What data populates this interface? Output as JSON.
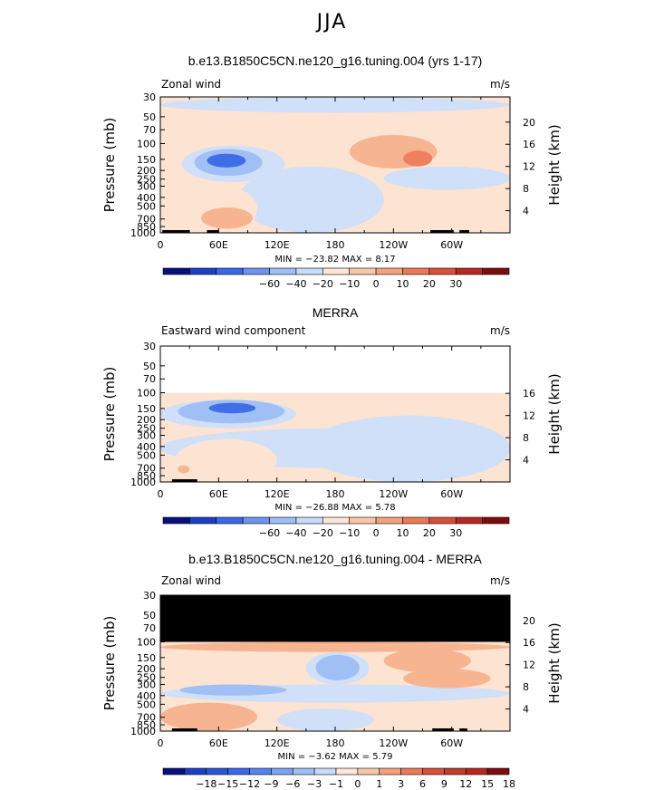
{
  "page_title": "JJA",
  "chart_data": [
    {
      "type": "heatmap",
      "title": "b.e13.B1850C5CN.ne120_g16.tuning.004 (yrs 1-17)",
      "left_label": "Zonal wind",
      "units": "m/s",
      "ylabel": "Pressure (mb)",
      "ylabel2": "Height (km)",
      "pressure_ticks": [
        "30",
        "50",
        "70",
        "100",
        "150",
        "200",
        "250",
        "300",
        "400",
        "500",
        "700",
        "850",
        "1000"
      ],
      "pressure_values": [
        30,
        50,
        70,
        100,
        150,
        200,
        250,
        300,
        400,
        500,
        700,
        850,
        1000
      ],
      "height_ticks": [
        "20",
        "16",
        "12",
        "8",
        "4"
      ],
      "height_values": [
        20,
        16,
        12,
        8,
        4
      ],
      "longitude_ticks": [
        "0",
        "60E",
        "120E",
        "180",
        "120W",
        "60W"
      ],
      "longitude_values": [
        0,
        60,
        120,
        180,
        240,
        300
      ],
      "xlim": [
        0,
        360
      ],
      "ylim": [
        1000,
        30
      ],
      "stats": "MIN = −23.82   MAX =    8.17",
      "min": -23.82,
      "max": 8.17,
      "colorbar_labels": [
        "−60",
        "−40",
        "−20",
        "−10",
        "0",
        "10",
        "20",
        "30"
      ],
      "colorbar_colors": [
        "#08107f",
        "#1a3fc6",
        "#3a68e8",
        "#6b95f0",
        "#9fbff5",
        "#c7dcf8",
        "#fbe6d8",
        "#f9c7a8",
        "#f4a27e",
        "#ec7a57",
        "#d9503a",
        "#b62820",
        "#7c0c10"
      ],
      "masked_top": false,
      "fill": [
        {
          "lon": [
            0,
            360
          ],
          "p": [
            30,
            1000
          ],
          "level": "light-orange"
        },
        {
          "lon": [
            0,
            360
          ],
          "p": [
            30,
            45
          ],
          "level": "light-blue"
        },
        {
          "lon": [
            0,
            360
          ],
          "p": [
            230,
            1000
          ],
          "level": "light-orange"
        },
        {
          "lon": [
            80,
            230
          ],
          "p": [
            180,
            1000
          ],
          "level": "light-blue"
        },
        {
          "lon": [
            230,
            360
          ],
          "p": [
            180,
            330
          ],
          "level": "light-blue"
        },
        {
          "lon": [
            22,
            128
          ],
          "p": [
            105,
            270
          ],
          "level": "light-blue"
        },
        {
          "lon": [
            35,
            105
          ],
          "p": [
            115,
            230
          ],
          "level": "mid-blue"
        },
        {
          "lon": [
            48,
            88
          ],
          "p": [
            130,
            185
          ],
          "level": "blue"
        },
        {
          "lon": [
            30,
            100
          ],
          "p": [
            300,
            1000
          ],
          "level": "light-orange"
        },
        {
          "lon": [
            42,
            95
          ],
          "p": [
            520,
            900
          ],
          "level": "orange"
        },
        {
          "lon": [
            195,
            285
          ],
          "p": [
            80,
            190
          ],
          "level": "orange"
        },
        {
          "lon": [
            250,
            280
          ],
          "p": [
            120,
            180
          ],
          "level": "red-orange"
        }
      ],
      "topography": [
        [
          2,
          30
        ],
        [
          48,
          60
        ],
        [
          278,
          302
        ],
        [
          308,
          318
        ]
      ]
    },
    {
      "type": "heatmap",
      "title": "MERRA",
      "left_label": "Eastward wind component",
      "units": "m/s",
      "ylabel": "Pressure (mb)",
      "ylabel2": "Height (km)",
      "pressure_ticks": [
        "30",
        "50",
        "70",
        "100",
        "150",
        "200",
        "250",
        "300",
        "400",
        "500",
        "700",
        "850",
        "1000"
      ],
      "pressure_values": [
        30,
        50,
        70,
        100,
        150,
        200,
        250,
        300,
        400,
        500,
        700,
        850,
        1000
      ],
      "height_ticks": [
        "16",
        "12",
        "8",
        "4"
      ],
      "height_values": [
        16,
        12,
        8,
        4
      ],
      "longitude_ticks": [
        "0",
        "60E",
        "120E",
        "180",
        "120W",
        "60W"
      ],
      "longitude_values": [
        0,
        60,
        120,
        180,
        240,
        300
      ],
      "xlim": [
        0,
        360
      ],
      "ylim": [
        1000,
        30
      ],
      "stats": "MIN = −26.88   MAX =    5.78",
      "min": -26.88,
      "max": 5.78,
      "colorbar_labels": [
        "−60",
        "−40",
        "−20",
        "−10",
        "0",
        "10",
        "20",
        "30"
      ],
      "colorbar_colors": [
        "#08107f",
        "#1a3fc6",
        "#3a68e8",
        "#6b95f0",
        "#9fbff5",
        "#c7dcf8",
        "#fbe6d8",
        "#f9c7a8",
        "#f4a27e",
        "#ec7a57",
        "#d9503a",
        "#b62820",
        "#7c0c10"
      ],
      "masked_top": false,
      "data_top": 100,
      "fill": [
        {
          "lon": [
            0,
            360
          ],
          "p": [
            100,
            1000
          ],
          "level": "light-orange"
        },
        {
          "lon": [
            0,
            360
          ],
          "p": [
            250,
            700
          ],
          "level": "light-blue"
        },
        {
          "lon": [
            150,
            360
          ],
          "p": [
            180,
            1000
          ],
          "level": "light-blue"
        },
        {
          "lon": [
            0,
            140
          ],
          "p": [
            120,
            250
          ],
          "level": "light-blue"
        },
        {
          "lon": [
            18,
            128
          ],
          "p": [
            120,
            220
          ],
          "level": "mid-blue"
        },
        {
          "lon": [
            50,
            98
          ],
          "p": [
            130,
            170
          ],
          "level": "blue"
        },
        {
          "lon": [
            15,
            120
          ],
          "p": [
            330,
            1000
          ],
          "level": "light-orange"
        },
        {
          "lon": [
            200,
            290
          ],
          "p": [
            120,
            180
          ],
          "level": "light-orange"
        },
        {
          "lon": [
            18,
            30
          ],
          "p": [
            650,
            800
          ],
          "level": "orange"
        }
      ],
      "topography": [
        [
          12,
          28
        ],
        [
          28,
          38
        ]
      ]
    },
    {
      "type": "heatmap",
      "title": "b.e13.B1850C5CN.ne120_g16.tuning.004 - MERRA",
      "left_label": "Zonal wind",
      "units": "m/s",
      "ylabel": "Pressure (mb)",
      "ylabel2": "Height (km)",
      "pressure_ticks": [
        "30",
        "50",
        "70",
        "100",
        "150",
        "200",
        "250",
        "300",
        "400",
        "500",
        "700",
        "850",
        "1000"
      ],
      "pressure_values": [
        30,
        50,
        70,
        100,
        150,
        200,
        250,
        300,
        400,
        500,
        700,
        850,
        1000
      ],
      "height_ticks": [
        "20",
        "16",
        "12",
        "8",
        "4"
      ],
      "height_values": [
        20,
        16,
        12,
        8,
        4
      ],
      "longitude_ticks": [
        "0",
        "60E",
        "120E",
        "180",
        "120W",
        "60W"
      ],
      "longitude_values": [
        0,
        60,
        120,
        180,
        240,
        300
      ],
      "xlim": [
        0,
        360
      ],
      "ylim": [
        1000,
        30
      ],
      "stats": "MIN = −3.62   MAX =    5.79",
      "min": -3.62,
      "max": 5.79,
      "colorbar_labels": [
        "−18",
        "−15",
        "−12",
        "−9",
        "−6",
        "−3",
        "−1",
        "0",
        "1",
        "3",
        "6",
        "9",
        "12",
        "15",
        "18"
      ],
      "colorbar_colors": [
        "#08107f",
        "#1a3fc6",
        "#2c55d8",
        "#3a68e8",
        "#5584ee",
        "#7aa3f2",
        "#9fbff5",
        "#c7dcf8",
        "#fbe6d8",
        "#f9c7a8",
        "#f4a27e",
        "#ec7a57",
        "#d9503a",
        "#c43a2c",
        "#b62820",
        "#7c0c10"
      ],
      "masked_top": true,
      "fill": [
        {
          "lon": [
            0,
            360
          ],
          "p": [
            100,
            1000
          ],
          "level": "light-orange"
        },
        {
          "lon": [
            0,
            360
          ],
          "p": [
            100,
            130
          ],
          "level": "orange"
        },
        {
          "lon": [
            150,
            215
          ],
          "p": [
            130,
            300
          ],
          "level": "light-blue"
        },
        {
          "lon": [
            160,
            205
          ],
          "p": [
            140,
            270
          ],
          "level": "mid-blue"
        },
        {
          "lon": [
            230,
            320
          ],
          "p": [
            120,
            220
          ],
          "level": "orange"
        },
        {
          "lon": [
            0,
            360
          ],
          "p": [
            300,
            480
          ],
          "level": "light-blue"
        },
        {
          "lon": [
            20,
            130
          ],
          "p": [
            300,
            400
          ],
          "level": "mid-blue"
        },
        {
          "lon": [
            0,
            100
          ],
          "p": [
            480,
            1000
          ],
          "level": "orange"
        },
        {
          "lon": [
            120,
            220
          ],
          "p": [
            560,
            1000
          ],
          "level": "light-blue"
        },
        {
          "lon": [
            250,
            340
          ],
          "p": [
            200,
            330
          ],
          "level": "orange"
        }
      ],
      "topography": [
        [
          12,
          28
        ],
        [
          28,
          38
        ],
        [
          280,
          302
        ],
        [
          308,
          316
        ]
      ]
    }
  ]
}
